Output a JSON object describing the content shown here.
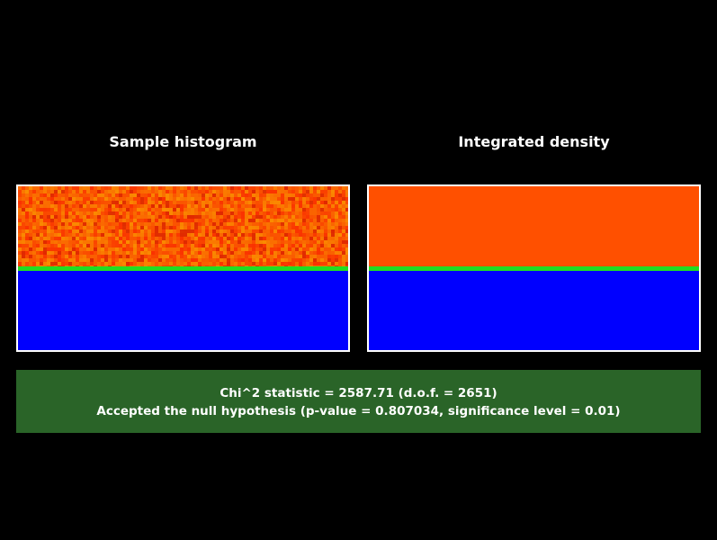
{
  "panels": [
    {
      "title": "Sample histogram"
    },
    {
      "title": "Integrated density"
    }
  ],
  "result": {
    "statistic_line": "Chi^2 statistic = 2587.71 (d.o.f. = 2651)",
    "conclusion_line": "Accepted the null hypothesis (p-value = 0.807034, significance level = 0.01)"
  }
}
